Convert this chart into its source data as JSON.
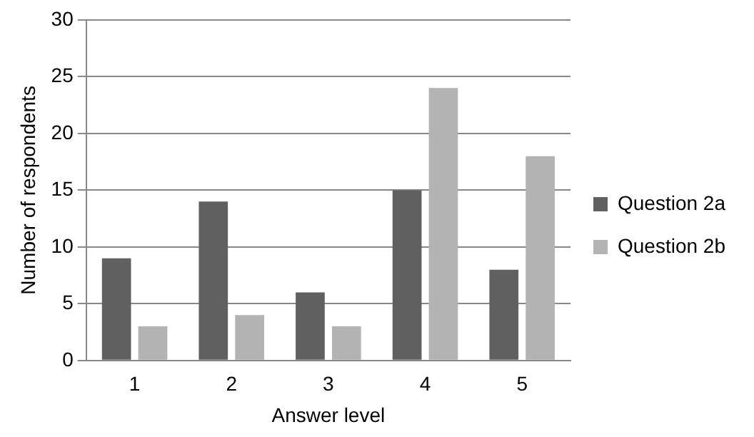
{
  "chart_data": {
    "type": "bar",
    "xlabel": "Answer level",
    "ylabel": "Number of respondents",
    "categories": [
      "1",
      "2",
      "3",
      "4",
      "5"
    ],
    "series": [
      {
        "name": "Question 2a",
        "color": "#606060",
        "values": [
          9,
          14,
          6,
          15,
          8
        ]
      },
      {
        "name": "Question 2b",
        "color": "#b3b3b3",
        "values": [
          3,
          4,
          3,
          24,
          18
        ]
      }
    ],
    "ylim": [
      0,
      30
    ],
    "yticks": [
      0,
      5,
      10,
      15,
      20,
      25,
      30
    ],
    "grid": "y",
    "legend": "right"
  }
}
